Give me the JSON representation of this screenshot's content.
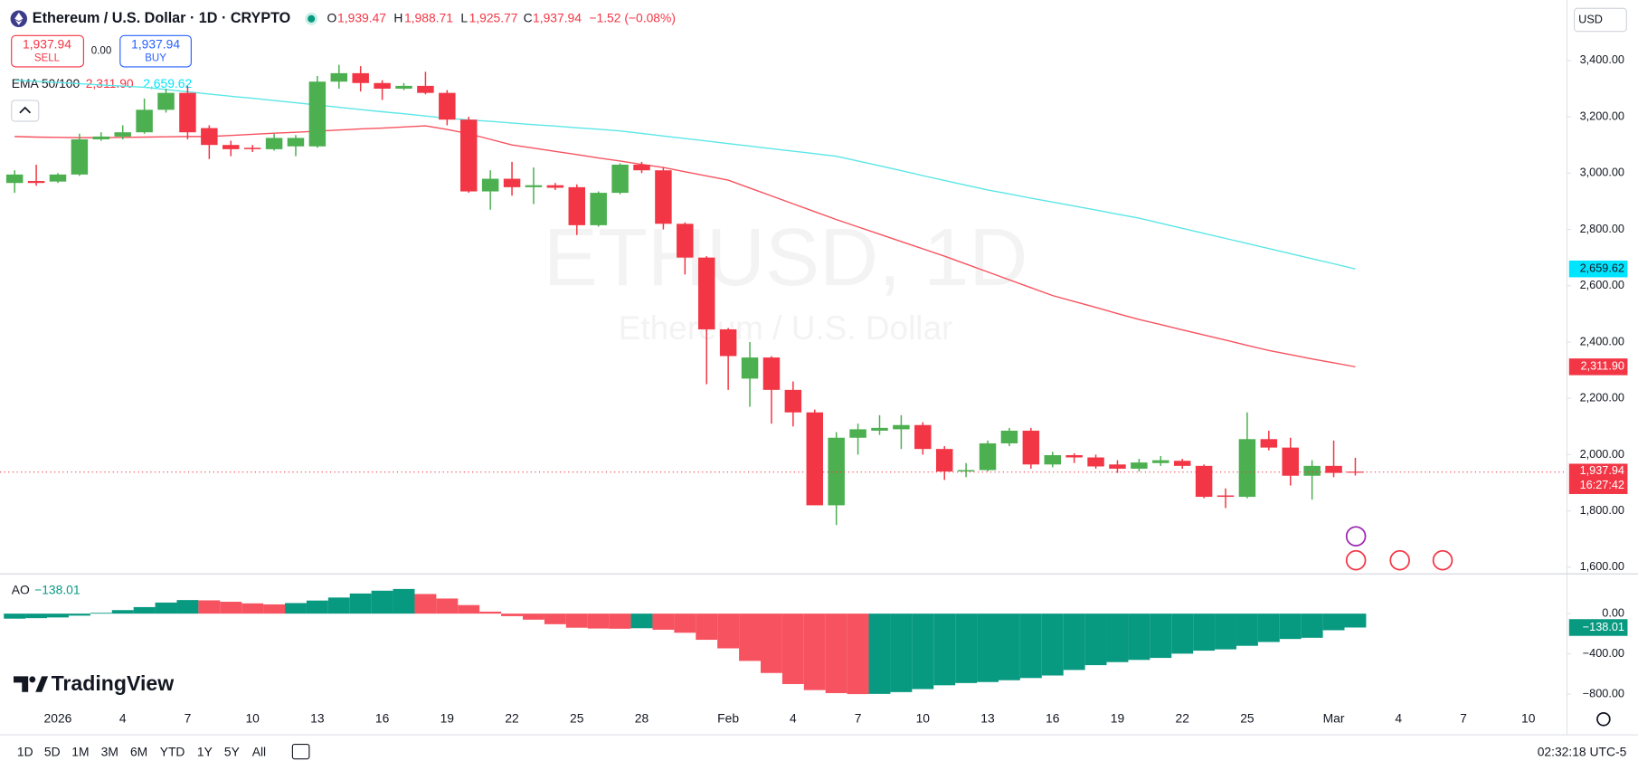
{
  "header": {
    "symbol": "Ethereum / U.S. Dollar · 1D · CRYPTO",
    "o_label": "O",
    "o": "1,939.47",
    "h_label": "H",
    "h": "1,988.71",
    "l_label": "L",
    "l": "1,925.77",
    "c_label": "C",
    "c": "1,937.94",
    "change": "−1.52 (−0.08%)"
  },
  "trade": {
    "sell_price": "1,937.94",
    "sell": "SELL",
    "spread": "0.00",
    "buy_price": "1,937.94",
    "buy": "BUY"
  },
  "currency": "USD",
  "logo": "TradingView",
  "toolbar": {
    "ranges": [
      "1D",
      "5D",
      "1M",
      "3M",
      "6M",
      "YTD",
      "1Y",
      "5Y",
      "All"
    ],
    "clock": "02:32:18 UTC-5"
  },
  "chart_data": [
    {
      "type": "candlestick",
      "watermark": "ETHUSD, 1D",
      "watermark_subtitle": "Ethereum / U.S. Dollar",
      "categories": [
        null,
        null,
        "2026",
        null,
        null,
        "4",
        null,
        null,
        "7",
        null,
        null,
        "10",
        null,
        null,
        "13",
        null,
        null,
        "16",
        null,
        null,
        "19",
        null,
        null,
        "22",
        null,
        null,
        "25",
        null,
        null,
        "28",
        null,
        null,
        null,
        "Feb",
        null,
        null,
        "4",
        null,
        null,
        "7",
        null,
        null,
        "10",
        null,
        null,
        "13",
        null,
        null,
        "16",
        null,
        null,
        "19",
        null,
        null,
        "22",
        null,
        null,
        "25",
        null,
        null,
        null,
        "Mar",
        null,
        null,
        "4",
        null,
        null,
        "7",
        null,
        null,
        "10",
        null,
        null
      ],
      "open": [
        2965,
        2972,
        2970,
        2995,
        3120,
        3130,
        3145,
        3225,
        3285,
        3160,
        3100,
        3090,
        3085,
        3095,
        3095,
        3325,
        3355,
        3320,
        3300,
        3310,
        3285,
        3190,
        2935,
        2980,
        2950,
        2957,
        2950,
        2815,
        2930,
        3030,
        3010,
        2820,
        2700,
        2445,
        2270,
        2345,
        2230,
        2150,
        1820,
        2060,
        2085,
        2090,
        2105,
        2020,
        1940,
        1945,
        2040,
        2085,
        1965,
        1998,
        1990,
        1965,
        1950,
        1970,
        1978,
        1960,
        1855,
        1850,
        2055,
        2025,
        1925,
        1960,
        1939.47,
        null,
        null,
        null,
        null,
        null,
        null,
        null,
        null,
        null,
        null
      ],
      "high": [
        3010,
        3030,
        3000,
        3140,
        3145,
        3170,
        3265,
        3300,
        3310,
        3170,
        3115,
        3100,
        3140,
        3135,
        3345,
        3385,
        3380,
        3330,
        3320,
        3360,
        3295,
        3200,
        3010,
        3040,
        3020,
        2965,
        2960,
        2935,
        3035,
        3040,
        3020,
        2825,
        2705,
        2450,
        2400,
        2350,
        2260,
        2160,
        2080,
        2110,
        2140,
        2140,
        2115,
        2030,
        1970,
        2050,
        2095,
        2095,
        2010,
        2005,
        2000,
        1980,
        1985,
        1995,
        1985,
        1965,
        1880,
        2150,
        2085,
        2060,
        1980,
        2050,
        1988.71,
        null,
        null,
        null,
        null,
        null,
        null,
        null,
        null,
        null,
        null
      ],
      "low": [
        2930,
        2955,
        2965,
        2990,
        3115,
        3120,
        3140,
        3215,
        3120,
        3050,
        3060,
        3075,
        3080,
        3060,
        3090,
        3300,
        3290,
        3260,
        3295,
        3280,
        3170,
        2930,
        2870,
        2920,
        2890,
        2940,
        2780,
        2810,
        2925,
        3000,
        2800,
        2640,
        2250,
        2230,
        2170,
        2110,
        2100,
        1820,
        1750,
        2000,
        2070,
        2020,
        2000,
        1910,
        1920,
        1940,
        2030,
        1950,
        1955,
        1970,
        1950,
        1935,
        1940,
        1960,
        1950,
        1845,
        1810,
        1845,
        2015,
        1890,
        1840,
        1920,
        1925.77,
        null,
        null,
        null,
        null,
        null,
        null,
        null,
        null,
        null,
        null
      ],
      "close": [
        2995,
        2965,
        2995,
        3120,
        3130,
        3145,
        3225,
        3285,
        3145,
        3100,
        3085,
        3085,
        3125,
        3125,
        3325,
        3355,
        3320,
        3300,
        3310,
        3285,
        3190,
        2935,
        2980,
        2950,
        2957,
        2948,
        2815,
        2930,
        3030,
        3010,
        2820,
        2700,
        2445,
        2350,
        2345,
        2230,
        2150,
        1820,
        2060,
        2090,
        2095,
        2105,
        2020,
        1940,
        1945,
        2040,
        2085,
        1965,
        1998,
        1990,
        1958,
        1950,
        1972,
        1980,
        1960,
        1850,
        1850,
        2055,
        2025,
        1925,
        1960,
        1935,
        1937.94,
        null,
        null,
        null,
        null,
        null,
        null,
        null,
        null,
        null,
        null
      ],
      "up_color": "#4caf50",
      "down_color": "#f23645",
      "indicator": {
        "label": "EMA 50/100",
        "series": [
          {
            "color": "#f7525f",
            "label_color": "#f23645",
            "last_label": "2,311.90",
            "values": [
              3130,
              3128,
              3127,
              3126,
              3126,
              3127,
              3128,
              3129,
              3130,
              3130,
              3134,
              3138,
              3142,
              3145,
              3149,
              3153,
              3157,
              3160,
              3164,
              3168,
              3155,
              3140,
              3120,
              3100,
              3089,
              3077,
              3066,
              3054,
              3043,
              3031,
              3020,
              3005,
              2990,
              2975,
              2947,
              2919,
              2891,
              2863,
              2835,
              2809,
              2783,
              2757,
              2731,
              2705,
              2677,
              2649,
              2621,
              2593,
              2565,
              2544,
              2523,
              2501,
              2480,
              2462,
              2443,
              2425,
              2407,
              2388,
              2370,
              2355,
              2340,
              2326,
              2311.9,
              null,
              null,
              null,
              null,
              null,
              null,
              null,
              null,
              null,
              null
            ]
          },
          {
            "color": "#5ce6e6",
            "label_color": "#00e5ff",
            "last_label": "2,659.62",
            "values": [
              3330,
              3326,
              3322,
              3318,
              3313,
              3309,
              3305,
              3297,
              3289,
              3281,
              3273,
              3266,
              3258,
              3250,
              3242,
              3234,
              3226,
              3218,
              3211,
              3203,
              3195,
              3189,
              3184,
              3178,
              3172,
              3167,
              3161,
              3156,
              3150,
              3141,
              3132,
              3123,
              3114,
              3105,
              3096,
              3087,
              3078,
              3069,
              3060,
              3043,
              3026,
              3009,
              2991,
              2974,
              2957,
              2940,
              2926,
              2911,
              2897,
              2883,
              2869,
              2854,
              2840,
              2822,
              2804,
              2786,
              2768,
              2750,
              2732,
              2714,
              2696,
              2678,
              2659.62,
              null,
              null,
              null,
              null,
              null,
              null,
              null,
              null,
              null,
              null
            ]
          }
        ]
      },
      "last_price": {
        "value": 1937.94,
        "label": "1,937.94",
        "countdown": "16:27:42",
        "color": "#f23645"
      },
      "ylim": [
        1580,
        3615
      ],
      "yticks": [
        {
          "value": 3400,
          "label": "3,400.00"
        },
        {
          "value": 3200,
          "label": "3,200.00"
        },
        {
          "value": 3000,
          "label": "3,000.00"
        },
        {
          "value": 2800,
          "label": "2,800.00"
        },
        {
          "value": 2600,
          "label": "2,600.00"
        },
        {
          "value": 2400,
          "label": "2,400.00"
        },
        {
          "value": 2200,
          "label": "2,200.00"
        },
        {
          "value": 2000,
          "label": "2,000.00"
        },
        {
          "value": 1800,
          "label": "1,800.00"
        },
        {
          "value": 1600,
          "label": "1,600.00"
        }
      ]
    },
    {
      "type": "bar",
      "title": "AO",
      "values": [
        -50,
        -45,
        -38,
        -20,
        8,
        35,
        65,
        110,
        135,
        132,
        118,
        102,
        92,
        105,
        130,
        160,
        200,
        228,
        245,
        195,
        150,
        85,
        20,
        -25,
        -60,
        -105,
        -140,
        -148,
        -150,
        -145,
        -160,
        -190,
        -260,
        -345,
        -470,
        -590,
        -700,
        -760,
        -790,
        -800,
        -798,
        -780,
        -750,
        -712,
        -690,
        -680,
        -662,
        -640,
        -615,
        -560,
        -512,
        -482,
        -460,
        -440,
        -398,
        -368,
        -355,
        -320,
        -282,
        -252,
        -240,
        -165,
        -138.01,
        null,
        null,
        null,
        null,
        null,
        null,
        null,
        null,
        null,
        null
      ],
      "last_label": "−138.01",
      "up_color": "#089981",
      "down_color": "#f7525f",
      "ylim": [
        -966,
        395
      ],
      "yticks": [
        {
          "value": 0,
          "label": "0.00"
        },
        {
          "value": -400,
          "label": "−400.00"
        },
        {
          "value": -800,
          "label": "−800.00"
        }
      ]
    }
  ]
}
